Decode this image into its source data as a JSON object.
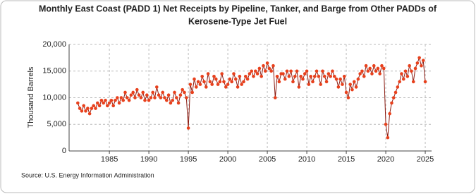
{
  "chart_data": {
    "type": "line",
    "title": "Monthly East Coast (PADD 1) Net Receipts by Pipeline, Tanker, and Barge from Other PADDs of",
    "subtitle": "Kerosene-Type Jet Fuel",
    "y_label": "Thousand Barrels",
    "source": "Source: U.S. Energy Information Administration",
    "xlim": [
      1979.9,
      2025.8
    ],
    "ylim": [
      0,
      20000
    ],
    "xticks": [
      1985,
      1990,
      1995,
      2000,
      2005,
      2010,
      2015,
      2020,
      2025
    ],
    "yticks": [
      0,
      {
        "value": 5000,
        "label": "5,000"
      },
      {
        "value": 10000,
        "label": "10,000"
      },
      {
        "value": 15000,
        "label": "15,000"
      },
      {
        "value": 20000,
        "label": "20,000"
      }
    ],
    "grid": true,
    "line_color": "#8b1a10",
    "marker_color": "#e8401c",
    "x": [
      1981,
      1981.25,
      1981.5,
      1981.75,
      1982,
      1982.25,
      1982.5,
      1982.75,
      1983,
      1983.25,
      1983.5,
      1983.75,
      1984,
      1984.25,
      1984.5,
      1984.75,
      1985,
      1985.25,
      1985.5,
      1985.75,
      1986,
      1986.25,
      1986.5,
      1986.75,
      1987,
      1987.25,
      1987.5,
      1987.75,
      1988,
      1988.25,
      1988.5,
      1988.75,
      1989,
      1989.25,
      1989.5,
      1989.75,
      1990,
      1990.25,
      1990.5,
      1990.75,
      1991,
      1991.25,
      1991.5,
      1991.75,
      1992,
      1992.25,
      1992.5,
      1992.75,
      1993,
      1993.25,
      1993.5,
      1993.75,
      1994,
      1994.25,
      1994.5,
      1994.75,
      1995,
      1995.25,
      1995.5,
      1995.75,
      1996,
      1996.25,
      1996.5,
      1996.75,
      1997,
      1997.25,
      1997.5,
      1997.75,
      1998,
      1998.25,
      1998.5,
      1998.75,
      1999,
      1999.25,
      1999.5,
      1999.75,
      2000,
      2000.25,
      2000.5,
      2000.75,
      2001,
      2001.25,
      2001.5,
      2001.75,
      2002,
      2002.25,
      2002.5,
      2002.75,
      2003,
      2003.25,
      2003.5,
      2003.75,
      2004,
      2004.25,
      2004.5,
      2004.75,
      2005,
      2005.25,
      2005.5,
      2005.75,
      2006,
      2006.25,
      2006.5,
      2006.75,
      2007,
      2007.25,
      2007.5,
      2007.75,
      2008,
      2008.25,
      2008.5,
      2008.75,
      2009,
      2009.25,
      2009.5,
      2009.75,
      2010,
      2010.25,
      2010.5,
      2010.75,
      2011,
      2011.25,
      2011.5,
      2011.75,
      2012,
      2012.25,
      2012.5,
      2012.75,
      2013,
      2013.25,
      2013.5,
      2013.75,
      2014,
      2014.25,
      2014.5,
      2014.75,
      2015,
      2015.25,
      2015.5,
      2015.75,
      2016,
      2016.25,
      2016.5,
      2016.75,
      2017,
      2017.25,
      2017.5,
      2017.75,
      2018,
      2018.25,
      2018.5,
      2018.75,
      2019,
      2019.25,
      2019.5,
      2019.75,
      2020,
      2020.25,
      2020.5,
      2020.75,
      2021,
      2021.25,
      2021.5,
      2021.75,
      2022,
      2022.25,
      2022.5,
      2022.75,
      2023,
      2023.25,
      2023.5,
      2023.75,
      2024,
      2024.25,
      2024.5,
      2024.75,
      2025
    ],
    "values": [
      9000,
      8000,
      7500,
      8500,
      7500,
      8000,
      7000,
      8000,
      8500,
      8000,
      9000,
      8500,
      9500,
      9000,
      9500,
      8500,
      9000,
      9500,
      8500,
      9500,
      10000,
      9000,
      10000,
      9500,
      11000,
      10000,
      9500,
      10500,
      11000,
      10000,
      11500,
      10500,
      10000,
      11000,
      9500,
      10500,
      9500,
      10000,
      11000,
      10000,
      12000,
      10500,
      10000,
      11000,
      10000,
      9500,
      10500,
      9000,
      9500,
      11000,
      10000,
      9000,
      10500,
      11500,
      11000,
      10000,
      4300,
      12500,
      11000,
      13500,
      12000,
      13000,
      12500,
      14000,
      13000,
      12000,
      14500,
      13000,
      12500,
      14000,
      13500,
      12500,
      13000,
      14500,
      13000,
      12000,
      12500,
      13500,
      13000,
      14500,
      13500,
      12000,
      14000,
      12500,
      13000,
      14000,
      13500,
      14500,
      15000,
      14000,
      15000,
      14500,
      15500,
      14000,
      16000,
      15000,
      16500,
      15500,
      15000,
      16000,
      10000,
      14000,
      13000,
      14500,
      14500,
      13500,
      15000,
      14000,
      15000,
      13000,
      14000,
      15000,
      12000,
      14000,
      13500,
      14500,
      15000,
      12500,
      14000,
      13000,
      14000,
      15000,
      14000,
      12500,
      15000,
      14000,
      13000,
      14500,
      14000,
      15000,
      14000,
      13500,
      12000,
      13500,
      12500,
      14000,
      11000,
      10000,
      12500,
      11500,
      13000,
      12000,
      13500,
      14500,
      15000,
      14000,
      16000,
      15000,
      15500,
      14500,
      16000,
      15000,
      15500,
      14500,
      16000,
      15500,
      5000,
      2500,
      7000,
      9000,
      10000,
      11000,
      12000,
      13000,
      14500,
      13500,
      15000,
      14000,
      16000,
      15000,
      13000,
      15500,
      16500,
      17500,
      16000,
      17000,
      13000
    ]
  }
}
